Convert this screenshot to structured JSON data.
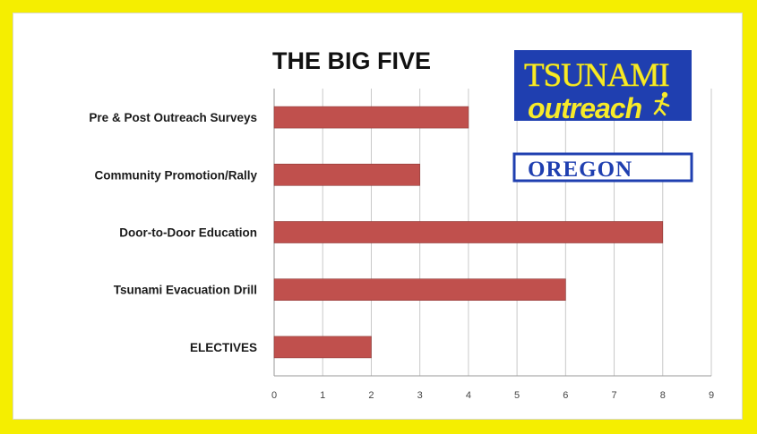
{
  "chart_data": {
    "type": "bar",
    "orientation": "horizontal",
    "title": "THE BIG FIVE",
    "categories": [
      "Pre & Post Outreach Surveys",
      "Community Promotion/Rally",
      "Door-to-Door Education",
      "Tsunami Evacuation Drill",
      "ELECTIVES"
    ],
    "values": [
      4,
      3,
      8,
      6,
      2
    ],
    "xlabel": "",
    "ylabel": "",
    "xlim": [
      0,
      9
    ],
    "x_ticks": [
      "0",
      "1",
      "2",
      "3",
      "4",
      "5",
      "6",
      "7",
      "8",
      "9"
    ],
    "grid": "vertical",
    "legend": "none",
    "bar_color": "#c0504d"
  },
  "logo": {
    "line1": "TSUNAMI",
    "line2": "outreach",
    "line3": "OREGON",
    "bg_color": "#1f3fb0",
    "text_color": "#f7ea2a"
  },
  "colors": {
    "frame": "#f5ee00",
    "grid": "#c8c8c8"
  }
}
